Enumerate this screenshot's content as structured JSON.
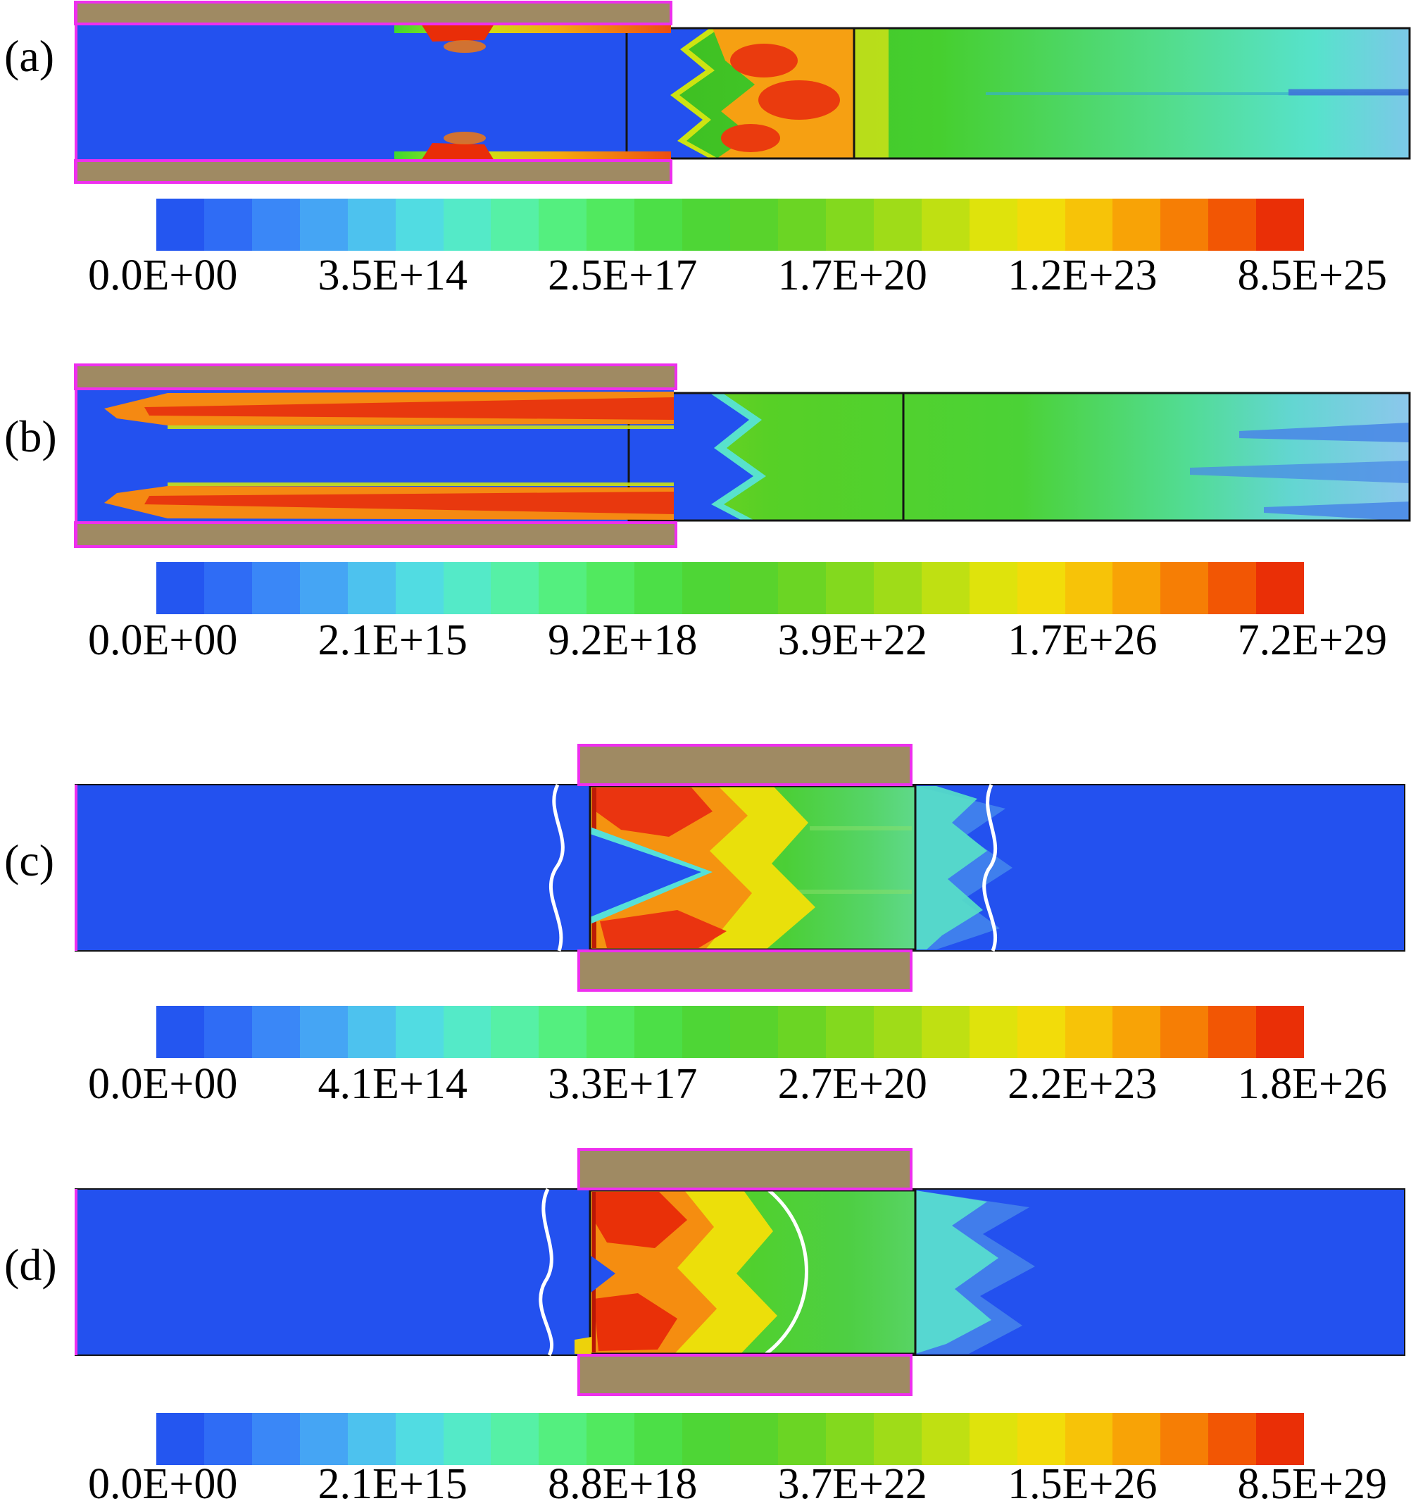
{
  "chart_data": {
    "type": "heatmap",
    "panels": [
      {
        "label": "(a)",
        "colorbar_ticks": [
          "0.0E+00",
          "3.5E+14",
          "2.5E+17",
          "1.7E+20",
          "1.2E+23",
          "8.5E+25"
        ]
      },
      {
        "label": "(b)",
        "colorbar_ticks": [
          "0.0E+00",
          "2.1E+15",
          "9.2E+18",
          "3.9E+22",
          "1.7E+26",
          "7.2E+29"
        ]
      },
      {
        "label": "(c)",
        "colorbar_ticks": [
          "0.0E+00",
          "4.1E+14",
          "3.3E+17",
          "2.7E+20",
          "2.2E+23",
          "1.8E+26"
        ]
      },
      {
        "label": "(d)",
        "colorbar_ticks": [
          "0.0E+00",
          "2.1E+15",
          "8.8E+18",
          "3.7E+22",
          "1.5E+26",
          "8.5E+29"
        ]
      }
    ],
    "colorbar_colors": [
      "#2456f0",
      "#2f6cf5",
      "#3a87f7",
      "#45a5f4",
      "#4dc2ee",
      "#51dce2",
      "#54eac8",
      "#56f0a6",
      "#54ef7f",
      "#51e95f",
      "#4cdf47",
      "#4ed636",
      "#59d32c",
      "#6bd524",
      "#83d91e",
      "#9fdc18",
      "#bfe012",
      "#dfe30c",
      "#f2dc0a",
      "#f7c308",
      "#f8a306",
      "#f67e05",
      "#f25604",
      "#ea2f06"
    ]
  },
  "colors": {
    "electrode_tan": "#9f8a63",
    "outline_magenta": "#ee2fee",
    "field_blue": "#2351ef",
    "contour_white": "#ffffff",
    "line_black": "#141414"
  }
}
